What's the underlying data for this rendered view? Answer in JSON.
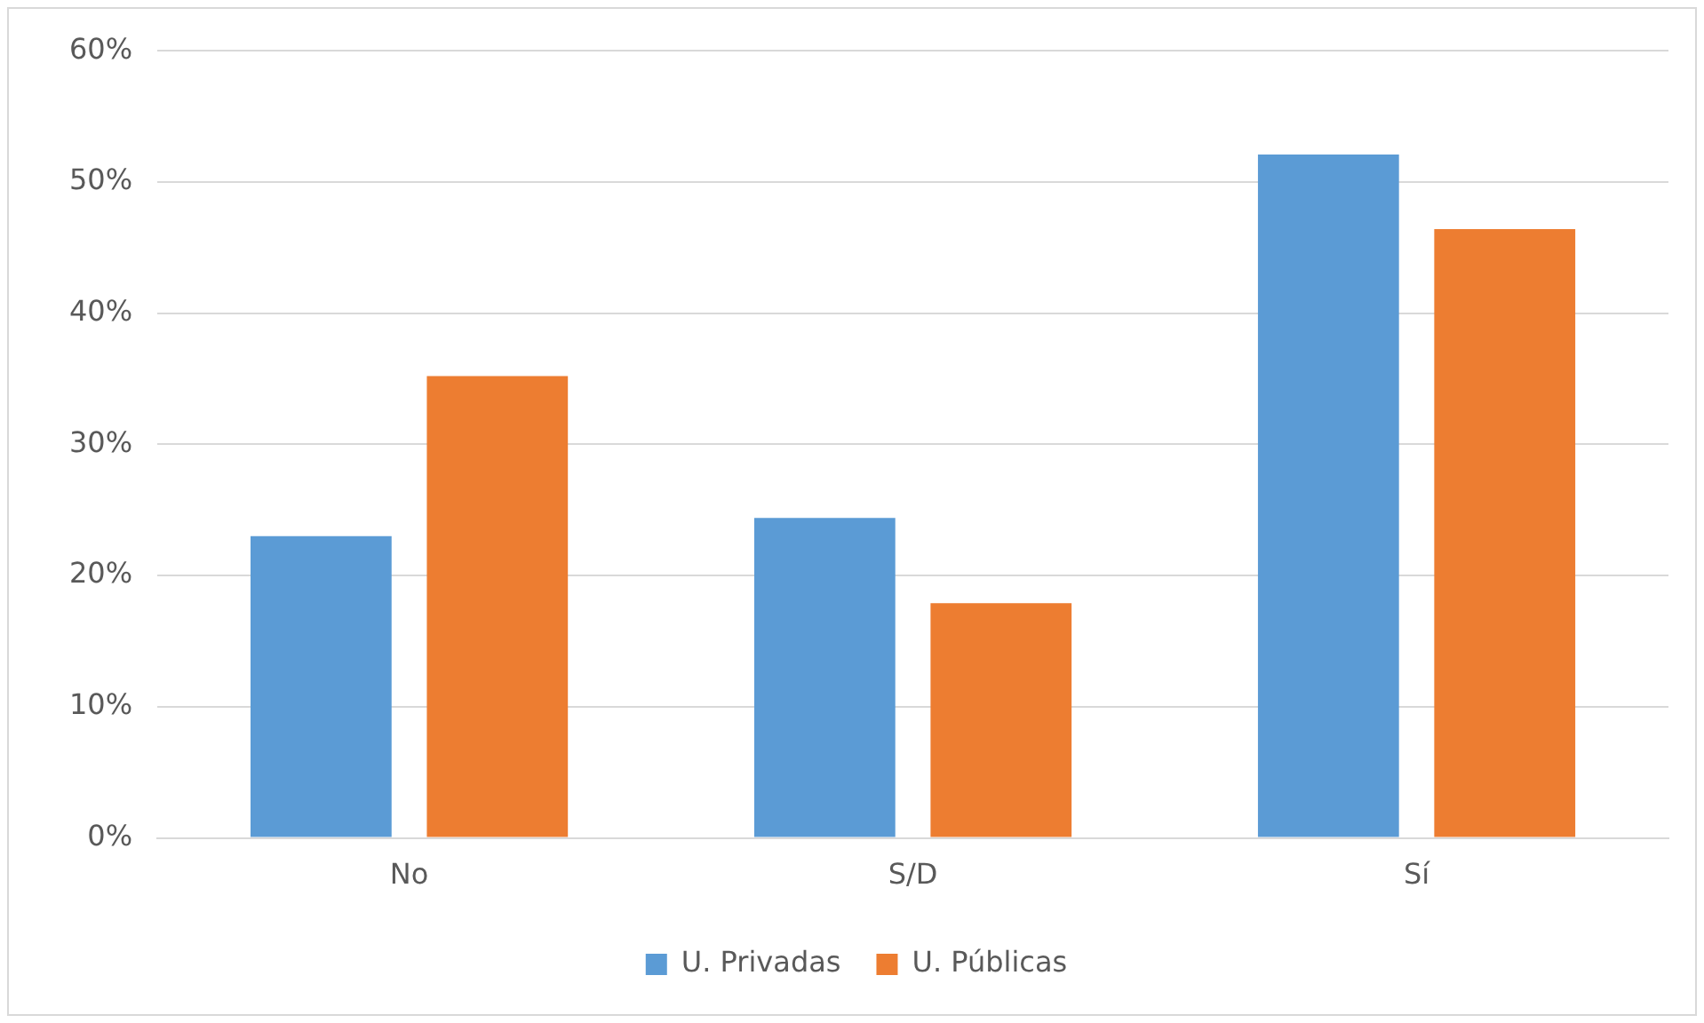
{
  "chart_data": {
    "type": "bar",
    "categories": [
      "No",
      "S/D",
      "Sí"
    ],
    "series": [
      {
        "name": "U. Privadas",
        "color": "#5b9bd5",
        "values": [
          23,
          24.4,
          52.1
        ]
      },
      {
        "name": "U. Públicas",
        "color": "#ed7d31",
        "values": [
          35.2,
          17.9,
          46.4
        ]
      }
    ],
    "ylim": [
      0,
      60
    ],
    "yticks": [
      {
        "value": 0,
        "label": "0%"
      },
      {
        "value": 10,
        "label": "10%"
      },
      {
        "value": 20,
        "label": "20%"
      },
      {
        "value": 30,
        "label": "30%"
      },
      {
        "value": 40,
        "label": "40%"
      },
      {
        "value": 50,
        "label": "50%"
      },
      {
        "value": 60,
        "label": "60%"
      }
    ],
    "grid": "y",
    "legend": "bottom"
  }
}
